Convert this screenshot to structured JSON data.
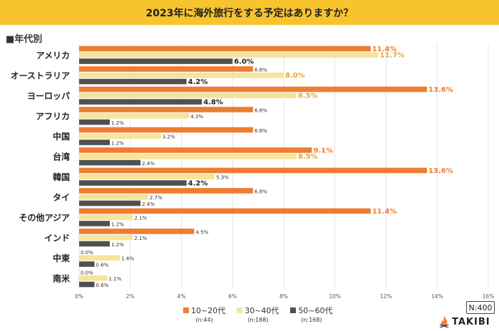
{
  "title": "2023年に海外旅行をする予定はありますか？",
  "subtitle": "■年代別",
  "sample_total": "N:400",
  "logo_text": "TAKIBI",
  "colors": {
    "title_bg": "#F7C32E",
    "series": [
      "#EE7D31",
      "#F6E49A",
      "#505050"
    ],
    "label": [
      "#EE7D31",
      "#E0A93A",
      "#222222"
    ]
  },
  "legend": [
    {
      "name": "10~20代",
      "n": "(n:44)"
    },
    {
      "name": "30~40代",
      "n": "(n:188)"
    },
    {
      "name": "50~60代",
      "n": "(n:168)"
    }
  ],
  "chart_data": {
    "type": "bar",
    "orientation": "horizontal",
    "categories": [
      "アメリカ",
      "オーストラリア",
      "ヨーロッパ",
      "アフリカ",
      "中国",
      "台湾",
      "韓国",
      "タイ",
      "その他アジア",
      "インド",
      "中東",
      "南米"
    ],
    "series": [
      {
        "name": "10~20代",
        "values": [
          11.4,
          6.8,
          13.6,
          6.8,
          6.8,
          9.1,
          13.6,
          6.8,
          11.4,
          4.5,
          0.0,
          0.0
        ]
      },
      {
        "name": "30~40代",
        "values": [
          11.7,
          8.0,
          8.5,
          4.3,
          3.2,
          8.5,
          5.3,
          2.7,
          2.1,
          2.1,
          1.6,
          1.1
        ]
      },
      {
        "name": "50~60代",
        "values": [
          6.0,
          4.2,
          4.8,
          1.2,
          1.2,
          2.4,
          4.2,
          2.4,
          1.2,
          1.2,
          0.6,
          0.6
        ]
      }
    ],
    "xlim": [
      0,
      16
    ],
    "xticks": [
      "0%",
      "2%",
      "4%",
      "6%",
      "8%",
      "10%",
      "12%",
      "14%",
      "16%"
    ],
    "unit": "%",
    "grid": true,
    "legend_position": "bottom"
  }
}
